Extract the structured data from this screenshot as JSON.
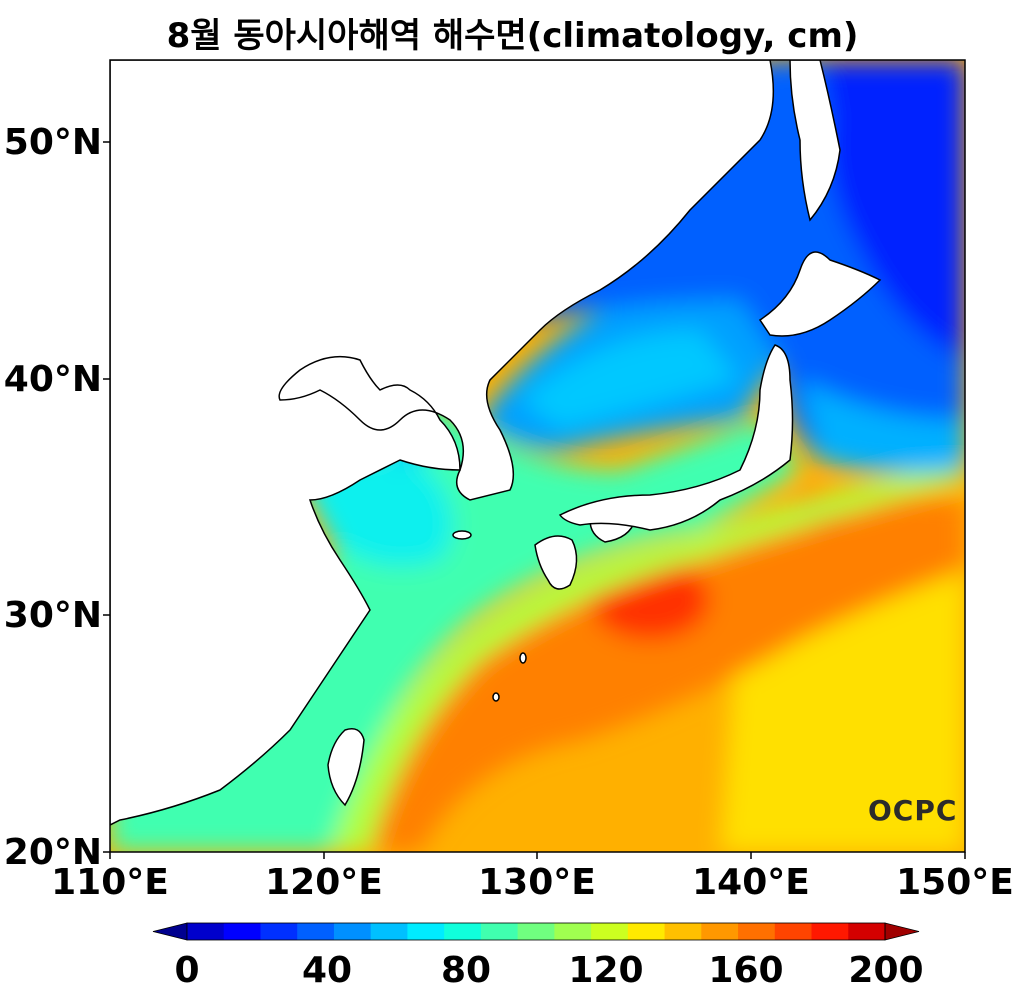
{
  "title": "8월 동아시아해역 해수면(climatology, cm)",
  "logo": "OCPC",
  "axes": {
    "y_ticks": [
      "50°N",
      "40°N",
      "30°N",
      "20°N"
    ],
    "x_ticks": [
      "110°E",
      "120°E",
      "130°E",
      "140°E",
      "150°E"
    ],
    "lat_range": [
      20,
      53.5
    ],
    "lon_range": [
      110,
      150
    ]
  },
  "colorbar": {
    "ticks": [
      "0",
      "40",
      "80",
      "120",
      "160",
      "200"
    ],
    "range": [
      0,
      200
    ],
    "step": 10,
    "extend": "both",
    "colors": [
      "#00008f",
      "#0000cc",
      "#0000ff",
      "#0030ff",
      "#0060ff",
      "#0090ff",
      "#00c0ff",
      "#00ecff",
      "#10ffdc",
      "#40ffaf",
      "#70ff80",
      "#a0ff50",
      "#ccff20",
      "#ffea00",
      "#ffc000",
      "#ff9800",
      "#ff7000",
      "#ff4400",
      "#ff1800",
      "#d40000",
      "#a00000"
    ]
  },
  "colors": {
    "land": "#ffffff",
    "coastline": "#000000",
    "kuroshio_peak": "#cc0000",
    "open_ocean": "#ffe000"
  }
}
